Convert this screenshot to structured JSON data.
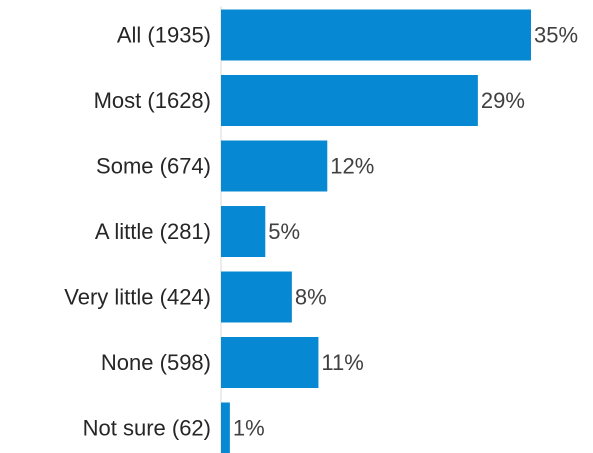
{
  "chart_data": {
    "type": "bar",
    "orientation": "horizontal",
    "categories": [
      "All  (1935)",
      "Most (1628)",
      "Some (674)",
      "A little  (281)",
      "Very little (424)",
      "None (598)",
      "Not sure (62)"
    ],
    "values": [
      35,
      29,
      12,
      5,
      8,
      11,
      1
    ],
    "value_labels": [
      "35%",
      "29%",
      "12%",
      "5%",
      "8%",
      "11%",
      "1%"
    ],
    "title": "",
    "xlabel": "",
    "ylabel": "",
    "xlim": [
      0,
      35
    ],
    "grid": false,
    "legend": "none",
    "bar_color": "#0788D2"
  }
}
